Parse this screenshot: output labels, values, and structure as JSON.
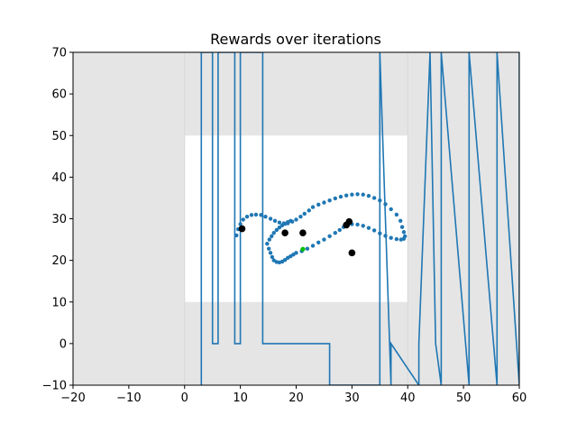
{
  "chart_data": {
    "type": "scatter",
    "title": "Rewards over iterations",
    "xlabel": "",
    "ylabel": "",
    "xlim": [
      -20,
      60
    ],
    "ylim": [
      -10,
      70
    ],
    "xticks": [
      -20,
      -10,
      0,
      10,
      20,
      30,
      40,
      50,
      60
    ],
    "yticks": [
      -10,
      0,
      10,
      20,
      30,
      40,
      50,
      60,
      70
    ],
    "xtick_labels": [
      "−20",
      "−10",
      "0",
      "10",
      "20",
      "30",
      "40",
      "50",
      "60"
    ],
    "ytick_labels": [
      "−10",
      "0",
      "10",
      "20",
      "30",
      "40",
      "50",
      "60",
      "70"
    ],
    "grid": false,
    "colors": {
      "background_region": "#e5e5e5",
      "inner_region": "#ffffff",
      "line": "#1f77b4",
      "points": "#1f77b4",
      "highlight_points": "#000000",
      "start_point": "#00c000"
    },
    "regions": {
      "outer": {
        "x": [
          -20,
          60
        ],
        "y": [
          -10,
          70
        ]
      },
      "inner_white": {
        "x": [
          0,
          40
        ],
        "y": [
          10,
          50
        ]
      },
      "vertical_lines_x": [
        0,
        40
      ]
    },
    "line_series": {
      "name": "",
      "x": [
        3,
        3,
        5,
        5,
        6,
        6,
        9,
        9,
        10,
        10,
        14,
        14,
        26,
        26,
        35,
        35,
        37,
        37,
        42,
        42,
        44,
        44,
        45,
        45,
        46,
        46,
        51,
        51,
        56,
        56,
        60,
        60
      ],
      "y": [
        -10,
        70,
        70,
        0,
        0,
        70,
        70,
        0,
        0,
        70,
        70,
        0,
        0,
        -10,
        -10,
        70,
        -10,
        0,
        -10,
        0,
        70,
        70,
        0,
        0,
        -10,
        70,
        -10,
        70,
        -10,
        70,
        -10,
        70
      ]
    },
    "scatter_series": {
      "name": "",
      "x": [
        9.3,
        9.6,
        10,
        10.5,
        11.2,
        12,
        12.8,
        13.7,
        14.5,
        15.4,
        16.2,
        17,
        17.8,
        18.5,
        19.3,
        20,
        20.8,
        21.5,
        22.3,
        23,
        24,
        25,
        26,
        27,
        28,
        29,
        30,
        31,
        32,
        33,
        34,
        35,
        36,
        37,
        38,
        38.7,
        39,
        39.3,
        39.5,
        39.3,
        38.8,
        38,
        37,
        36,
        35,
        34,
        33,
        32,
        31,
        30,
        29.3,
        28.5,
        27.8,
        27,
        26,
        25,
        24,
        23,
        22,
        21,
        20,
        19.5,
        19,
        18.5,
        18,
        17.5,
        17,
        16.5,
        16,
        15.7,
        15.4,
        15.1,
        14.8,
        15.2,
        15.6,
        16,
        16.5,
        17,
        17.5,
        18,
        18.5,
        19
      ],
      "y": [
        26,
        27.5,
        28.7,
        29.8,
        30.5,
        30.9,
        31,
        30.9,
        30.5,
        30,
        29.5,
        29.1,
        28.9,
        28.9,
        29.3,
        29.8,
        30.5,
        31.2,
        32,
        32.8,
        33.4,
        33.9,
        34.4,
        34.9,
        35.3,
        35.6,
        35.8,
        35.9,
        35.8,
        35.5,
        35,
        34.4,
        33.5,
        32.3,
        31,
        29.5,
        28,
        26.8,
        25.8,
        25.2,
        25,
        25.1,
        25.4,
        25.9,
        26.5,
        27.2,
        27.8,
        28.3,
        28.6,
        28.7,
        28.5,
        28,
        27.3,
        26.6,
        25.8,
        25,
        24.3,
        23.5,
        22.8,
        22.2,
        21.8,
        21.4,
        21,
        20.6,
        20.1,
        19.7,
        19.5,
        19.6,
        20,
        20.8,
        21.8,
        22.8,
        24,
        25,
        25.8,
        26.6,
        27.3,
        27.9,
        28.4,
        28.8,
        29.2,
        29.5
      ]
    },
    "highlight_points": {
      "x": [
        10.3,
        18,
        21.2,
        29,
        29.5,
        30
      ],
      "y": [
        27.6,
        26.6,
        26.6,
        28.5,
        29.3,
        21.8
      ]
    },
    "start_point": {
      "x": [
        21.2
      ],
      "y": [
        22.7
      ]
    }
  }
}
